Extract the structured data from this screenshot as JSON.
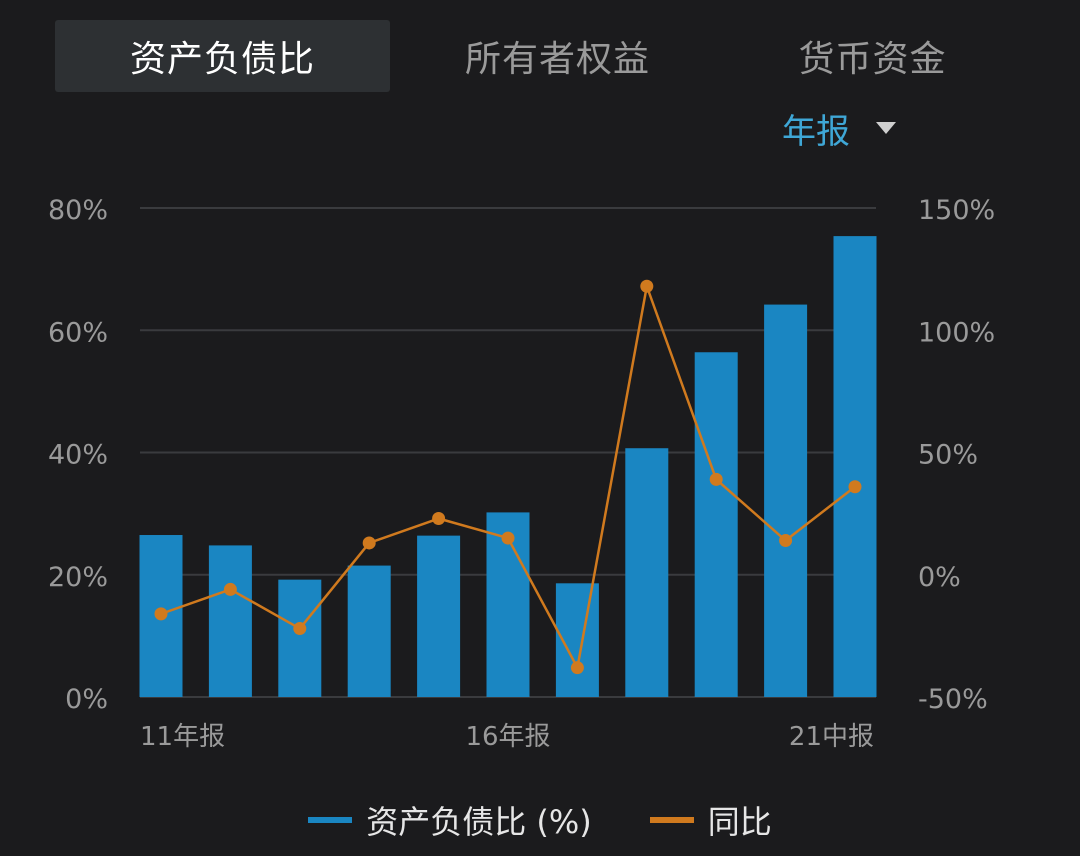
{
  "tabs": [
    {
      "label": "资产负债比",
      "active": true
    },
    {
      "label": "所有者权益",
      "active": false
    },
    {
      "label": "货币资金",
      "active": false
    }
  ],
  "period": {
    "label": "年报",
    "icon": "caret-down-icon"
  },
  "colors": {
    "bar": "#1a86c2",
    "line": "#d07a1e",
    "grid": "#3a3b3e",
    "axis_text": "#9a9a9a",
    "accent": "#3fa7d6"
  },
  "chart_data": {
    "type": "bar",
    "x_tick_labels": [
      "11年报",
      "16年报",
      "21中报"
    ],
    "left_axis": {
      "ticks": [
        "0%",
        "20%",
        "40%",
        "60%",
        "80%"
      ],
      "ylim": [
        0,
        80
      ]
    },
    "right_axis": {
      "ticks": [
        "-50%",
        "0%",
        "50%",
        "100%",
        "150%"
      ],
      "ylim": [
        -50,
        150
      ]
    },
    "grid": true,
    "legend_position": "bottom",
    "series": [
      {
        "name": "资产负债比 (%)",
        "kind": "bar",
        "axis": "left",
        "values": [
          26.5,
          24.8,
          19.2,
          21.5,
          26.4,
          30.2,
          18.6,
          40.7,
          56.4,
          64.2,
          75.4
        ]
      },
      {
        "name": "同比",
        "kind": "line",
        "axis": "right",
        "values": [
          -16,
          -6,
          -22,
          13,
          23,
          15,
          -38,
          118,
          39,
          14,
          36
        ]
      }
    ]
  }
}
